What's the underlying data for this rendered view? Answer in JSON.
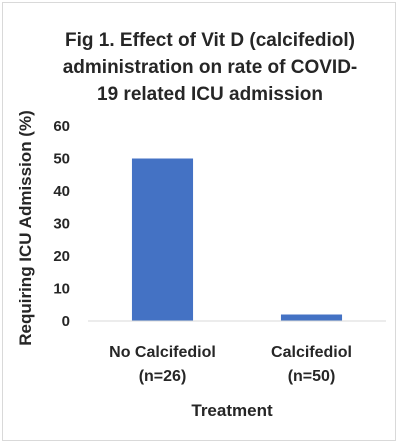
{
  "chart_data": {
    "type": "bar",
    "title_lines": [
      "Fig 1.  Effect of Vit D (calcifediol)",
      "administration on rate of COVID-",
      "19 related ICU admission"
    ],
    "categories": [
      [
        "No Calcifediol",
        "(n=26)"
      ],
      [
        "Calcifediol",
        "(n=50)"
      ]
    ],
    "values": [
      50,
      2
    ],
    "xlabel": "Treatment",
    "ylabel": "Requiring ICU Admission (%)",
    "ylim": [
      0,
      60
    ],
    "yticks": [
      "0",
      "10",
      "20",
      "30",
      "40",
      "50",
      "60"
    ],
    "grid": false,
    "bar_color": "#4472c4",
    "axis_color": "#d9d9d9",
    "text_color": "#262626"
  }
}
